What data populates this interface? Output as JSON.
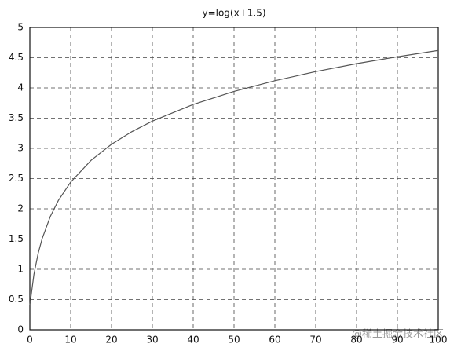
{
  "chart_data": {
    "type": "line",
    "title": "y=log(x+1.5)",
    "x": [
      0,
      1,
      2,
      3,
      5,
      7,
      10,
      15,
      20,
      25,
      30,
      40,
      50,
      60,
      70,
      80,
      90,
      100
    ],
    "series": [
      {
        "name": "y",
        "color": "#555555",
        "values": [
          0.405,
          0.916,
          1.253,
          1.504,
          1.872,
          2.14,
          2.442,
          2.803,
          3.068,
          3.277,
          3.45,
          3.726,
          3.942,
          4.119,
          4.27,
          4.401,
          4.516,
          4.62
        ]
      }
    ],
    "xlim": [
      0,
      100
    ],
    "xticks": [
      0,
      10,
      20,
      30,
      40,
      50,
      60,
      70,
      80,
      90,
      100
    ],
    "ylim": [
      0,
      5
    ],
    "yticks": [
      0,
      0.5,
      1,
      1.5,
      2,
      2.5,
      3,
      3.5,
      4,
      4.5,
      5
    ],
    "grid": true,
    "watermark": "@稀土掘金技术社区"
  }
}
